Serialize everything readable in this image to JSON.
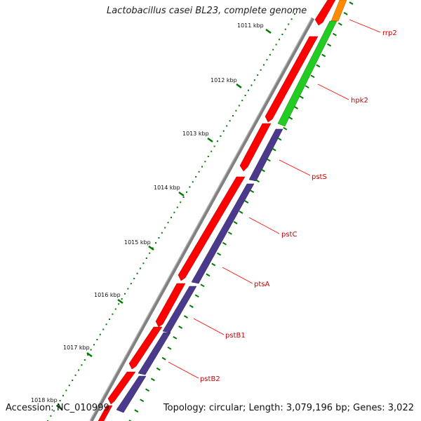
{
  "title": "Lactobacillus casei BL23, complete genome",
  "footer": {
    "accession": "Accession: NC_010999",
    "summary": "Topology: circular; Length: 3,079,196 bp; Genes: 3,022"
  },
  "ticks": [
    "1011 kbp",
    "1012 kbp",
    "1013 kbp",
    "1014 kbp",
    "1015 kbp",
    "1016 kbp",
    "1017 kbp",
    "1018 kbp"
  ],
  "genes": [
    "rrp2",
    "hpk2",
    "pstS",
    "pstC",
    "ptsA",
    "pstB1",
    "pstB2"
  ],
  "colors": {
    "forward_cds": "#ff0000",
    "reverse_cds": "#4b3a8c",
    "gene_green": "#22cc22",
    "gene_orange": "#ff8c00",
    "backbone": "#808080",
    "tick": "#007a00",
    "label_line": "#ff0000",
    "label_text": "#cc0000"
  }
}
